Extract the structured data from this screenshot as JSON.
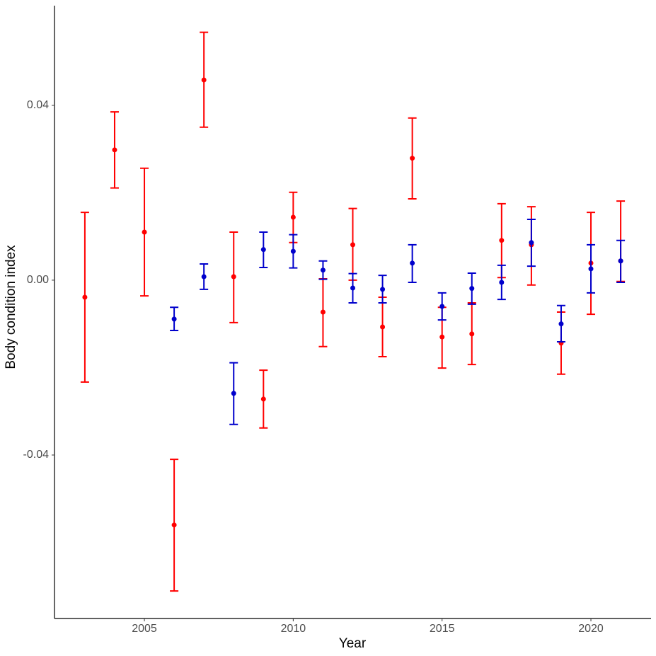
{
  "chart_data": {
    "type": "errorbar",
    "x_label": "Year",
    "y_label": "Body condition index",
    "xlim": [
      2001.98,
      2022.02
    ],
    "ylim": [
      -0.0774,
      0.0628
    ],
    "xticks": [
      2005,
      2010,
      2015,
      2020
    ],
    "yticks": [
      -0.04,
      {
        "value": 0,
        "label": "0.00"
      },
      0.04
    ],
    "grid": false,
    "series": [
      {
        "color": "#ff0000",
        "x": [
          2003,
          2004,
          2005,
          2006,
          2007,
          2008,
          2009,
          2010,
          2011,
          2012,
          2013,
          2014,
          2015,
          2016,
          2017,
          2018,
          2019,
          2020,
          2021
        ],
        "values": [
          -0.0039,
          0.0298,
          0.011,
          -0.056,
          0.0458,
          0.0008,
          -0.0272,
          0.0144,
          -0.0073,
          0.0081,
          -0.0107,
          0.0279,
          -0.013,
          -0.0123,
          0.0091,
          0.0081,
          -0.0144,
          0.0039,
          0.0044
        ],
        "upper": [
          0.0155,
          0.0385,
          0.0256,
          -0.041,
          0.0567,
          0.011,
          -0.0206,
          0.0201,
          0.0003,
          0.0164,
          -0.0039,
          0.0371,
          -0.0062,
          -0.0052,
          0.0175,
          0.0168,
          -0.0073,
          0.0155,
          0.0181
        ],
        "lower": [
          -0.0233,
          0.0211,
          -0.0036,
          -0.0711,
          0.035,
          -0.0097,
          -0.0338,
          0.0086,
          -0.0152,
          0.0,
          -0.0175,
          0.0186,
          -0.0201,
          -0.0193,
          0.0006,
          -0.0011,
          -0.0215,
          -0.0078,
          -0.0003
        ]
      },
      {
        "color": "#0000cc",
        "x": [
          2006,
          2007,
          2008,
          2009,
          2010,
          2011,
          2012,
          2013,
          2014,
          2015,
          2016,
          2017,
          2018,
          2019,
          2020,
          2021
        ],
        "values": [
          -0.0089,
          0.0008,
          -0.0259,
          0.007,
          0.0066,
          0.0023,
          -0.0018,
          -0.0021,
          0.0039,
          -0.006,
          -0.0019,
          -0.0005,
          0.0086,
          -0.01,
          0.0026,
          0.0044
        ],
        "upper": [
          -0.0062,
          0.0037,
          -0.0189,
          0.011,
          0.0104,
          0.0044,
          0.0015,
          0.0011,
          0.0081,
          -0.0029,
          0.0016,
          0.0034,
          0.0139,
          -0.0058,
          0.0081,
          0.0091
        ],
        "lower": [
          -0.0115,
          -0.0021,
          -0.033,
          0.0029,
          0.0028,
          0.0002,
          -0.0052,
          -0.0052,
          -0.0005,
          -0.0091,
          -0.0055,
          -0.0044,
          0.0032,
          -0.0141,
          -0.0029,
          -0.0005
        ]
      }
    ]
  }
}
